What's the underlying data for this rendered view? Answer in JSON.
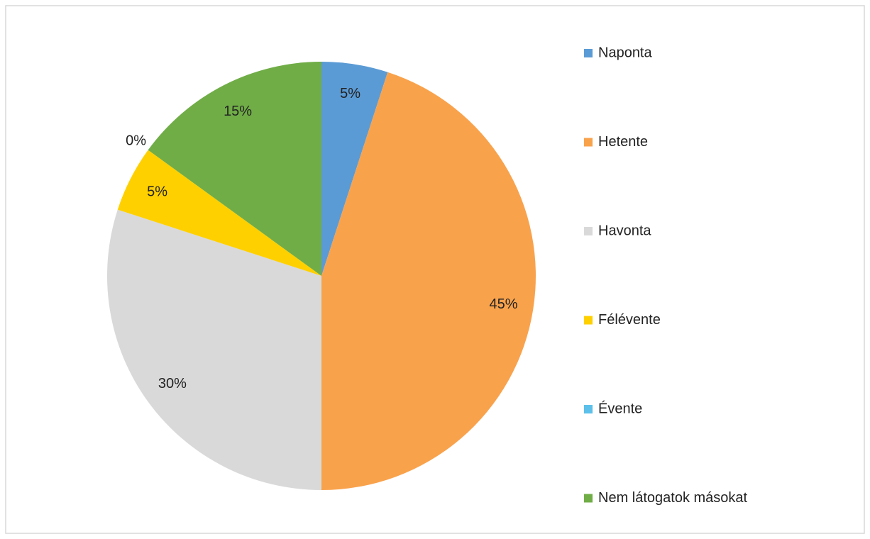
{
  "chart_data": {
    "type": "pie",
    "categories": [
      "Naponta",
      "Hetente",
      "Havonta",
      "Félévente",
      "Évente",
      "Nem látogatok másokat"
    ],
    "values": [
      5,
      45,
      30,
      5,
      0,
      15
    ],
    "value_labels": [
      "5%",
      "45%",
      "30%",
      "5%",
      "0%",
      "15%"
    ],
    "colors": [
      "#5b9bd5",
      "#f9a24c",
      "#d9d9d9",
      "#ffd000",
      "#5cc0ea",
      "#70ad47"
    ],
    "legend": "right"
  }
}
